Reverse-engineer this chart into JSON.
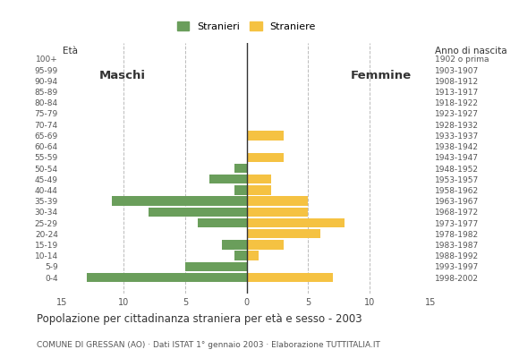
{
  "age_groups": [
    "100+",
    "95-99",
    "90-94",
    "85-89",
    "80-84",
    "75-79",
    "70-74",
    "65-69",
    "60-64",
    "55-59",
    "50-54",
    "45-49",
    "40-44",
    "35-39",
    "30-34",
    "25-29",
    "20-24",
    "15-19",
    "10-14",
    "5-9",
    "0-4"
  ],
  "birth_years": [
    "1902 o prima",
    "1903-1907",
    "1908-1912",
    "1913-1917",
    "1918-1922",
    "1923-1927",
    "1928-1932",
    "1933-1937",
    "1938-1942",
    "1943-1947",
    "1948-1952",
    "1953-1957",
    "1958-1962",
    "1963-1967",
    "1968-1972",
    "1973-1977",
    "1978-1982",
    "1983-1987",
    "1988-1992",
    "1993-1997",
    "1998-2002"
  ],
  "maschi": [
    0,
    0,
    0,
    0,
    0,
    0,
    0,
    0,
    0,
    0,
    1,
    3,
    1,
    11,
    8,
    4,
    0,
    2,
    1,
    5,
    13
  ],
  "femmine": [
    0,
    0,
    0,
    0,
    0,
    0,
    0,
    3,
    0,
    3,
    0,
    2,
    2,
    5,
    5,
    8,
    6,
    3,
    1,
    0,
    7
  ],
  "male_color": "#6a9e5b",
  "female_color": "#f5c242",
  "title": "Popolazione per cittadinanza straniera per età e sesso - 2003",
  "subtitle": "COMUNE DI GRESSAN (AO) · Dati ISTAT 1° gennaio 2003 · Elaborazione TUTTITALIA.IT",
  "legend_male": "Stranieri",
  "legend_female": "Straniere",
  "xlabel_left": "Maschi",
  "xlabel_right": "Femmine",
  "age_label": "Età",
  "birth_year_label": "Anno di nascita",
  "xlim": 15,
  "background_color": "#ffffff",
  "bar_height": 0.85
}
